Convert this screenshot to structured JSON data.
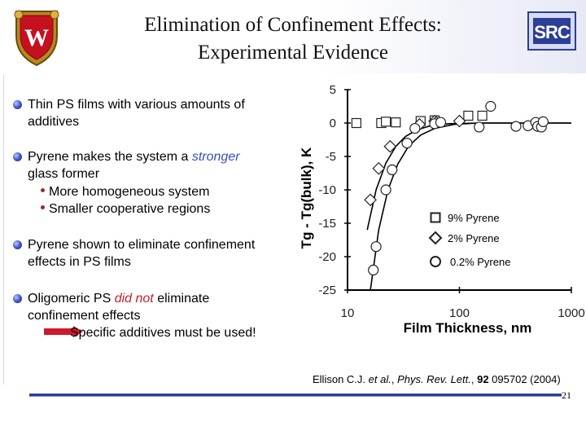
{
  "slide": {
    "title_line1": "Elimination of Confinement Effects:",
    "title_line2": "Experimental Evidence",
    "page_number": "21",
    "citation": {
      "authors": "Ellison C.J. ",
      "etal": "et al.",
      "sep": ", ",
      "journal": "Phys. Rev. Lett.",
      "sep2": ", ",
      "volume": "92",
      "rest": " 095702 (2004)"
    }
  },
  "bullets": {
    "b1_line1": "Thin PS films with various amounts of",
    "b1_line2": "additives",
    "b2_pre": "Pyrene makes the system a ",
    "b2_hl": "stronger",
    "b2_line2": "glass former",
    "b2_sub1": "More homogeneous system",
    "b2_sub2": "Smaller cooperative regions",
    "b3_line1": "Pyrene shown to eliminate confinement",
    "b3_line2": "effects in PS films",
    "b4_pre": "Oligomeric PS ",
    "b4_hl": "did not",
    "b4_post": " eliminate",
    "b4_line2": "confinement effects",
    "b4_line3": "Specific additives must be used!"
  },
  "colors": {
    "accent_blue": "#3a4fb8",
    "accent_red": "#c0202a",
    "footer_line": "#2c3e96"
  },
  "icons": [
    "university-crest-icon",
    "src-logo-icon",
    "bullet-dot-icon",
    "red-arrow-icon"
  ],
  "chart_data": {
    "type": "scatter",
    "xlabel": "Film Thickness, nm",
    "ylabel": "Tg - Tg(bulk), K",
    "xscale": "log",
    "xlim": [
      10,
      1000
    ],
    "ylim": [
      -25,
      5
    ],
    "xticks": [
      10,
      100,
      1000
    ],
    "xtick_labels": [
      "10",
      "100",
      "1000"
    ],
    "yticks": [
      5,
      0,
      -5,
      -10,
      -15,
      -20,
      -25
    ],
    "ytick_labels": [
      "5",
      "0",
      "-5",
      "-10",
      "-15",
      "-20",
      "-25"
    ],
    "grid": false,
    "legend_position": "lower-right",
    "series": [
      {
        "name": "9% Pyrene",
        "marker": "square",
        "points": [
          [
            12,
            0
          ],
          [
            20,
            0
          ],
          [
            22,
            0.2
          ],
          [
            27,
            0.1
          ],
          [
            45,
            0.3
          ],
          [
            60,
            0.4
          ],
          [
            120,
            1.1
          ],
          [
            160,
            1.1
          ]
        ]
      },
      {
        "name": "2% Pyrene",
        "marker": "diamond",
        "points": [
          [
            16,
            -11.5
          ],
          [
            19,
            -6.8
          ],
          [
            24,
            -3.5
          ],
          [
            44,
            -0.2
          ],
          [
            60,
            0.3
          ],
          [
            62,
            0.1
          ],
          [
            100,
            0.3
          ]
        ]
      },
      {
        "name": "0.2% Pyrene",
        "marker": "circle",
        "points": [
          [
            17,
            -22
          ],
          [
            18,
            -18.5
          ],
          [
            22,
            -10
          ],
          [
            25,
            -7
          ],
          [
            34,
            -3
          ],
          [
            40,
            -0.8
          ],
          [
            60,
            -0.1
          ],
          [
            68,
            0.1
          ],
          [
            150,
            -0.6
          ],
          [
            190,
            2.5
          ],
          [
            320,
            -0.5
          ],
          [
            410,
            -0.4
          ],
          [
            480,
            0.1
          ],
          [
            500,
            -0.5
          ],
          [
            540,
            -0.6
          ],
          [
            560,
            0.2
          ]
        ]
      }
    ],
    "fit_curves": [
      {
        "points": [
          [
            15,
            -16
          ],
          [
            18,
            -10
          ],
          [
            22,
            -6
          ],
          [
            27,
            -3.5
          ],
          [
            33,
            -2
          ],
          [
            42,
            -1
          ],
          [
            55,
            -0.4
          ],
          [
            80,
            -0.1
          ],
          [
            150,
            0
          ],
          [
            1000,
            0
          ]
        ]
      },
      {
        "points": [
          [
            16,
            -25
          ],
          [
            19,
            -16
          ],
          [
            23,
            -10
          ],
          [
            28,
            -6.2
          ],
          [
            35,
            -3.5
          ],
          [
            45,
            -1.8
          ],
          [
            60,
            -0.8
          ],
          [
            90,
            -0.2
          ],
          [
            150,
            0
          ],
          [
            1000,
            0
          ]
        ]
      }
    ]
  }
}
